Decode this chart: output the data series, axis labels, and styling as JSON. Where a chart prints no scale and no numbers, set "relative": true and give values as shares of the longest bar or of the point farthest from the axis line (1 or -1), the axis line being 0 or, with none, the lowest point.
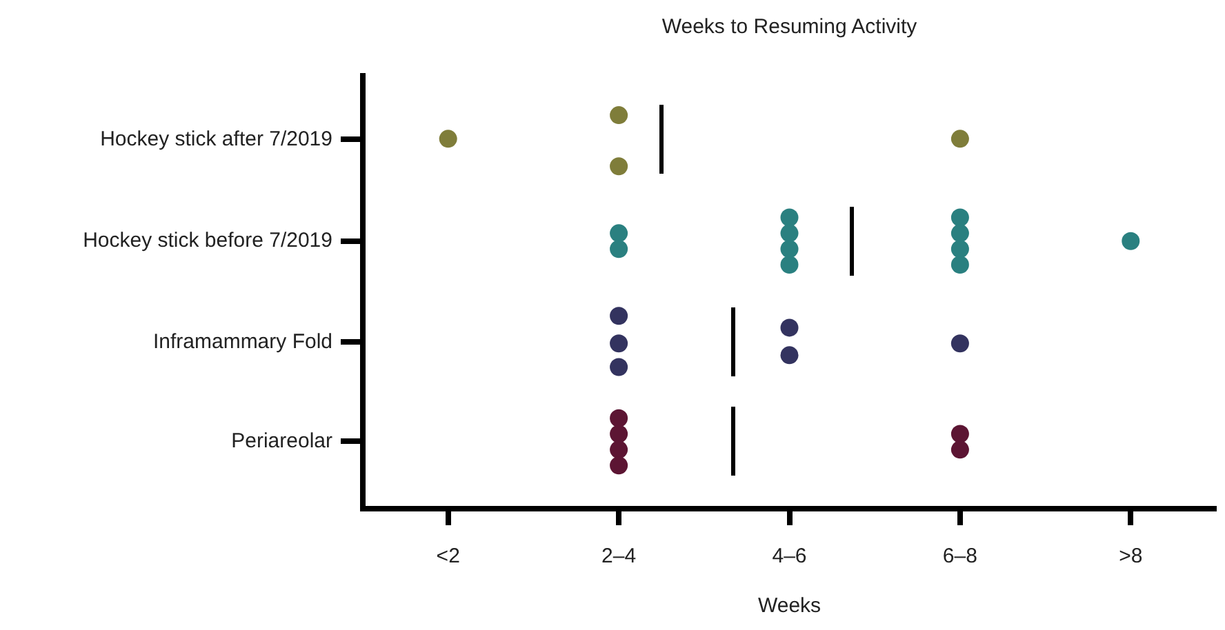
{
  "chart_data": {
    "type": "scatter",
    "title": "Weeks to Resuming Activity",
    "xlabel": "Weeks",
    "relative": true,
    "categories": [
      "<2",
      "2–4",
      "4–6",
      "6–8",
      ">8"
    ],
    "annotations": [
      "Hockey stick after 7/2019",
      "Hockey stick before 7/2019",
      "Inframammary Fold",
      "Periareolar"
    ],
    "series": [
      {
        "color": "#7f7d3a",
        "x": [
          "<2",
          "2–4",
          "2–4",
          "6–8"
        ],
        "values": [
          0.94,
          1.0,
          0.87,
          0.94
        ]
      },
      {
        "color": "#2a8080",
        "x": [
          "2–4",
          "2–4",
          "4–6",
          "4–6",
          "4–6",
          "4–6",
          "6–8",
          "6–8",
          "6–8",
          "6–8",
          ">8"
        ],
        "values": [
          0.7,
          0.66,
          0.74,
          0.7,
          0.66,
          0.62,
          0.74,
          0.7,
          0.66,
          0.62,
          0.68
        ]
      },
      {
        "color": "#33335f",
        "x": [
          "2–4",
          "2–4",
          "2–4",
          "4–6",
          "4–6",
          "6–8"
        ],
        "values": [
          0.49,
          0.42,
          0.36,
          0.46,
          0.39,
          0.42
        ]
      },
      {
        "color": "#5c1533",
        "x": [
          "2–4",
          "2–4",
          "2–4",
          "2–4",
          "6–8",
          "6–8"
        ],
        "values": [
          0.23,
          0.19,
          0.15,
          0.11,
          0.19,
          0.15
        ]
      }
    ],
    "marker": "circle"
  }
}
